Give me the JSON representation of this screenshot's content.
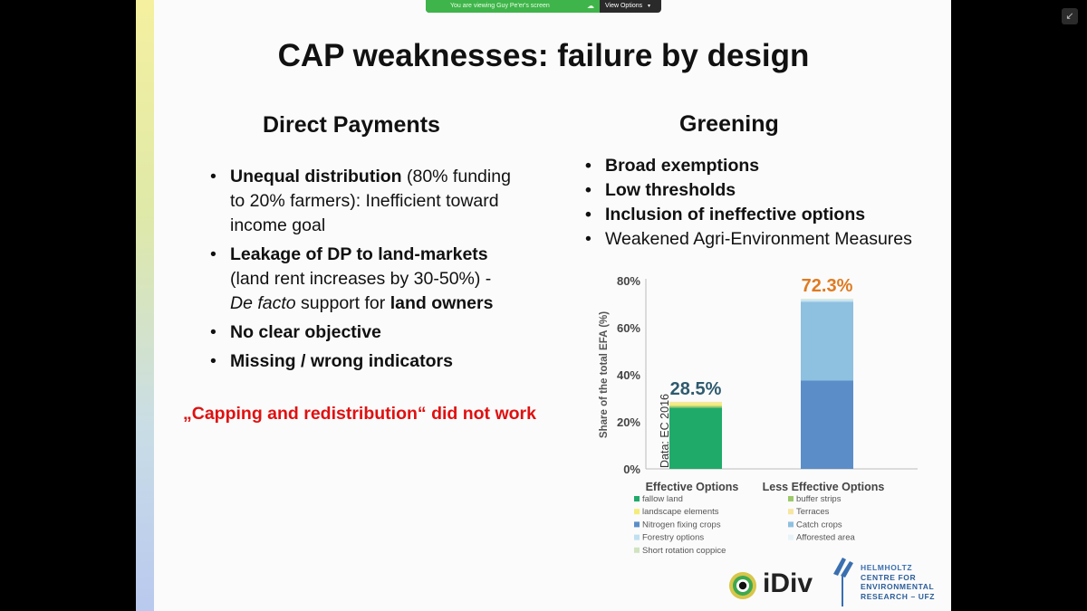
{
  "share_banner": {
    "text": "You are viewing Guy Pe'er's screen",
    "view_options": "View Options",
    "cloud_icon": "cloud-icon",
    "caret": "▾"
  },
  "exit_fullscreen_icon": "↙",
  "slide": {
    "title": "CAP weaknesses: failure by design",
    "direct_payments": {
      "heading": "Direct Payments",
      "items": [
        {
          "bold": "Unequal distribution",
          "rest": " (80% funding to 20% farmers): Inefficient toward income goal"
        },
        {
          "bold": "Leakage of DP to land-markets",
          "rest1": " (land rent increases by 30-50%) - ",
          "italic": "De facto",
          "rest2": " support for ",
          "bold2": "land owners"
        },
        {
          "bold": "No clear objective"
        },
        {
          "bold": "Missing / wrong indicators"
        }
      ],
      "note": "„Capping and redistribution“ did not work"
    },
    "greening": {
      "heading": "Greening",
      "items": [
        {
          "text": "Broad exemptions",
          "bold": true
        },
        {
          "text": "Low thresholds",
          "bold": true
        },
        {
          "text": "Inclusion of ineffective options",
          "bold": true
        },
        {
          "text": "Weakened Agri-Environment Measures",
          "bold": false
        }
      ]
    },
    "logos": {
      "idiv": "iDiv",
      "ufz_line1": "HELMHOLTZ",
      "ufz_lines": [
        "CENTRE FOR",
        "ENVIRONMENTAL",
        "RESEARCH – UFZ"
      ]
    }
  },
  "chart_data": {
    "type": "bar",
    "stacked": true,
    "ylabel": "Share of the total EFA (%)",
    "ylim": [
      0,
      80
    ],
    "yticks": [
      "0%",
      "20%",
      "40%",
      "60%",
      "80%"
    ],
    "annotation": "Data: EC 2016",
    "categories": [
      "Effective Options",
      "Less Effective Options"
    ],
    "totals": [
      "28.5%",
      "72.3%"
    ],
    "total_colors": [
      "#2e5a6e",
      "#e07a20"
    ],
    "series": [
      {
        "name": "fallow land",
        "color": "#1faa6a",
        "values": [
          26.0,
          0
        ]
      },
      {
        "name": "buffer strips",
        "color": "#9cc96a",
        "values": [
          0.8,
          0
        ]
      },
      {
        "name": "landscape elements",
        "color": "#f3ec7a",
        "values": [
          1.2,
          0
        ]
      },
      {
        "name": "Terraces",
        "color": "#f6e6a0",
        "values": [
          0.5,
          0
        ]
      },
      {
        "name": "Nitrogen fixing crops",
        "color": "#5b8ec8",
        "values": [
          0,
          37.5
        ]
      },
      {
        "name": "Catch crops",
        "color": "#8ec0e0",
        "values": [
          0,
          33.5
        ]
      },
      {
        "name": "Forestry options",
        "color": "#bfe0f0",
        "values": [
          0,
          0.8
        ]
      },
      {
        "name": "Afforested area",
        "color": "#e8f3f8",
        "values": [
          0,
          0.3
        ]
      },
      {
        "name": "Short rotation coppice",
        "color": "#cfe3c0",
        "values": [
          0,
          0.2
        ]
      }
    ]
  }
}
